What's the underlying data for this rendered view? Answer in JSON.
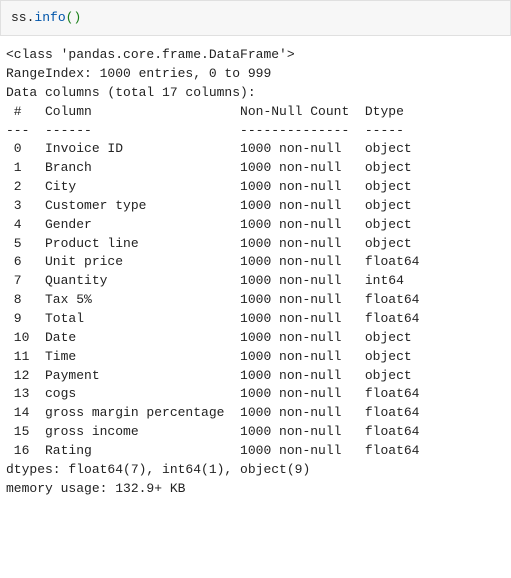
{
  "code": {
    "object": "ss",
    "dot": ".",
    "method": "info",
    "paren_open": "(",
    "paren_close": ")"
  },
  "output": {
    "class_line": "<class 'pandas.core.frame.DataFrame'>",
    "rangeindex_line": "RangeIndex: 1000 entries, 0 to 999",
    "datacolumns_line": "Data columns (total 17 columns):",
    "header_line": " #   Column                   Non-Null Count  Dtype  ",
    "divider_line": "---  ------                   --------------  -----  ",
    "rows": [
      " 0   Invoice ID               1000 non-null   object ",
      " 1   Branch                   1000 non-null   object ",
      " 2   City                     1000 non-null   object ",
      " 3   Customer type            1000 non-null   object ",
      " 4   Gender                   1000 non-null   object ",
      " 5   Product line             1000 non-null   object ",
      " 6   Unit price               1000 non-null   float64",
      " 7   Quantity                 1000 non-null   int64  ",
      " 8   Tax 5%                   1000 non-null   float64",
      " 9   Total                    1000 non-null   float64",
      " 10  Date                     1000 non-null   object ",
      " 11  Time                     1000 non-null   object ",
      " 12  Payment                  1000 non-null   object ",
      " 13  cogs                     1000 non-null   float64",
      " 14  gross margin percentage  1000 non-null   float64",
      " 15  gross income             1000 non-null   float64",
      " 16  Rating                   1000 non-null   float64"
    ],
    "dtypes_line": "dtypes: float64(7), int64(1), object(9)",
    "memory_line": "memory usage: 132.9+ KB"
  }
}
